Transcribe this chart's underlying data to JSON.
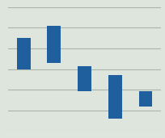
{
  "bars": [
    {
      "x": 0,
      "bottom": 5.0,
      "height": 2.5
    },
    {
      "x": 1,
      "bottom": 5.5,
      "height": 3.0
    },
    {
      "x": 2,
      "bottom": 3.2,
      "height": 2.0
    },
    {
      "x": 3,
      "bottom": 1.0,
      "height": 3.5
    },
    {
      "x": 4,
      "bottom": 2.0,
      "height": 1.2
    }
  ],
  "bar_color": "#1f5f9e",
  "bar_width": 0.45,
  "background_color": "#dde5dd",
  "grid_color": "#aab5aa",
  "ylim": [
    0,
    10
  ],
  "xlim": [
    -0.5,
    4.5
  ],
  "n_gridlines": 7,
  "figsize": [
    2.05,
    1.71
  ],
  "dpi": 100
}
